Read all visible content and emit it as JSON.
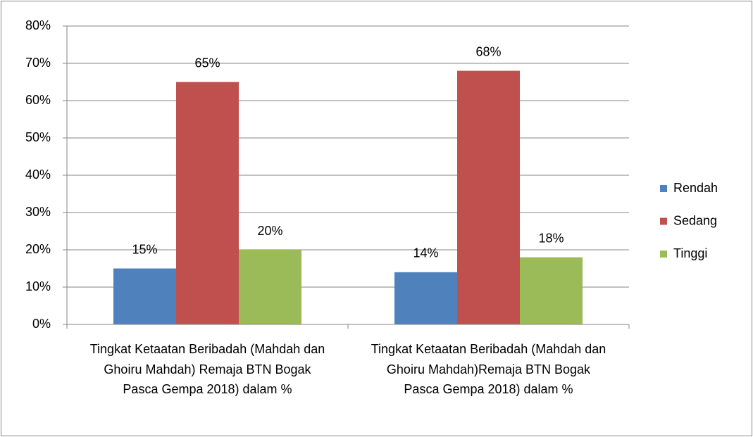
{
  "chart_data": {
    "type": "bar",
    "categories": [
      "Tingkat Ketaatan Beribadah (Mahdah dan Ghoiru Mahdah) Remaja BTN Bogak Pasca Gempa 2018) dalam %",
      "Tingkat Ketaatan Beribadah (Mahdah dan Ghoiru Mahdah)Remaja BTN Bogak Pasca Gempa 2018) dalam %"
    ],
    "series": [
      {
        "name": "Rendah",
        "color": "#4f81bd",
        "values": [
          15,
          14
        ],
        "value_labels": [
          "15%",
          "14%"
        ]
      },
      {
        "name": "Sedang",
        "color": "#c0504d",
        "values": [
          65,
          68
        ],
        "value_labels": [
          "65%",
          "68%"
        ]
      },
      {
        "name": "Tinggi",
        "color": "#9bbb59",
        "values": [
          20,
          18
        ],
        "value_labels": [
          "20%",
          "18%"
        ]
      }
    ],
    "ylim": [
      0,
      80
    ],
    "yticks": [
      {
        "value": 0,
        "label": "0%"
      },
      {
        "value": 10,
        "label": "10%"
      },
      {
        "value": 20,
        "label": "20%"
      },
      {
        "value": 30,
        "label": "30%"
      },
      {
        "value": 40,
        "label": "40%"
      },
      {
        "value": 50,
        "label": "50%"
      },
      {
        "value": 60,
        "label": "60%"
      },
      {
        "value": 70,
        "label": "70%"
      },
      {
        "value": 80,
        "label": "80%"
      }
    ],
    "grid": true,
    "legend": "right"
  }
}
